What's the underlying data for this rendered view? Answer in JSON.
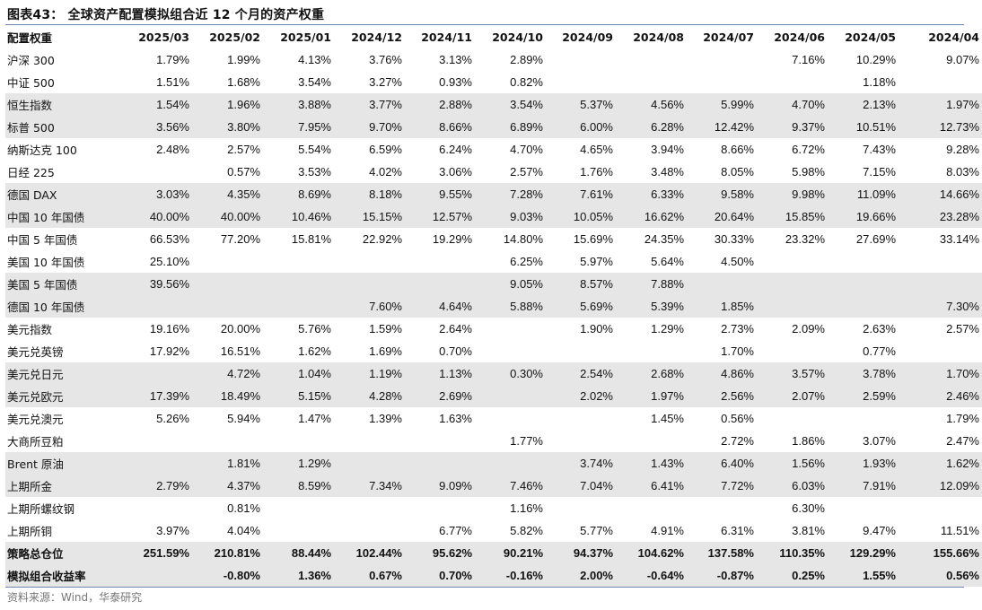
{
  "title": "图表43： 全球资产配置模拟组合近 12 个月的资产权重",
  "table": {
    "header": [
      "配置权重",
      "2025/03",
      "2025/02",
      "2025/01",
      "2024/12",
      "2024/11",
      "2024/10",
      "2024/09",
      "2024/08",
      "2024/07",
      "2024/06",
      "2024/05",
      "2024/04"
    ],
    "rows": [
      {
        "cells": [
          "沪深 300",
          "1.79%",
          "1.99%",
          "4.13%",
          "3.76%",
          "3.13%",
          "2.89%",
          "",
          "",
          "",
          "7.16%",
          "10.29%",
          "9.07%"
        ]
      },
      {
        "cells": [
          "中证 500",
          "1.51%",
          "1.68%",
          "3.54%",
          "3.27%",
          "0.93%",
          "0.82%",
          "",
          "",
          "",
          "",
          "1.18%",
          ""
        ]
      },
      {
        "cells": [
          "恒生指数",
          "1.54%",
          "1.96%",
          "3.88%",
          "3.77%",
          "2.88%",
          "3.54%",
          "5.37%",
          "4.56%",
          "5.99%",
          "4.70%",
          "2.13%",
          "1.97%"
        ]
      },
      {
        "cells": [
          "标普 500",
          "3.56%",
          "3.80%",
          "7.95%",
          "9.70%",
          "8.66%",
          "6.89%",
          "6.00%",
          "6.28%",
          "12.42%",
          "9.37%",
          "10.51%",
          "12.73%"
        ]
      },
      {
        "cells": [
          "纳斯达克 100",
          "2.48%",
          "2.57%",
          "5.54%",
          "6.59%",
          "6.24%",
          "4.70%",
          "4.65%",
          "3.94%",
          "8.66%",
          "6.72%",
          "7.43%",
          "9.28%"
        ]
      },
      {
        "cells": [
          "日经 225",
          "",
          "0.57%",
          "3.53%",
          "4.02%",
          "3.06%",
          "2.57%",
          "1.76%",
          "3.48%",
          "8.05%",
          "5.98%",
          "7.15%",
          "8.03%"
        ]
      },
      {
        "cells": [
          "德国 DAX",
          "3.03%",
          "4.35%",
          "8.69%",
          "8.18%",
          "9.55%",
          "7.28%",
          "7.61%",
          "6.33%",
          "9.58%",
          "9.98%",
          "11.09%",
          "14.66%"
        ]
      },
      {
        "cells": [
          "中国 10 年国债",
          "40.00%",
          "40.00%",
          "10.46%",
          "15.15%",
          "12.57%",
          "9.03%",
          "10.05%",
          "16.62%",
          "20.64%",
          "15.85%",
          "19.66%",
          "23.28%"
        ]
      },
      {
        "cells": [
          "中国 5 年国债",
          "66.53%",
          "77.20%",
          "15.81%",
          "22.92%",
          "19.29%",
          "14.80%",
          "15.69%",
          "24.35%",
          "30.33%",
          "23.32%",
          "27.69%",
          "33.14%"
        ]
      },
      {
        "cells": [
          "美国 10 年国债",
          "25.10%",
          "",
          "",
          "",
          "",
          "6.25%",
          "5.97%",
          "5.64%",
          "4.50%",
          "",
          "",
          ""
        ]
      },
      {
        "cells": [
          "美国 5 年国债",
          "39.56%",
          "",
          "",
          "",
          "",
          "9.05%",
          "8.57%",
          "7.88%",
          "",
          "",
          "",
          ""
        ]
      },
      {
        "cells": [
          "德国 10 年国债",
          "",
          "",
          "",
          "7.60%",
          "4.64%",
          "5.88%",
          "5.69%",
          "5.39%",
          "1.85%",
          "",
          "",
          "7.30%"
        ]
      },
      {
        "cells": [
          "美元指数",
          "19.16%",
          "20.00%",
          "5.76%",
          "1.59%",
          "2.64%",
          "",
          "1.90%",
          "1.29%",
          "2.73%",
          "2.09%",
          "2.63%",
          "2.57%"
        ]
      },
      {
        "cells": [
          "美元兑英镑",
          "17.92%",
          "16.51%",
          "1.62%",
          "1.69%",
          "0.70%",
          "",
          "",
          "",
          "1.70%",
          "",
          "0.77%",
          ""
        ]
      },
      {
        "cells": [
          "美元兑日元",
          "",
          "4.72%",
          "1.04%",
          "1.19%",
          "1.13%",
          "0.30%",
          "2.54%",
          "2.68%",
          "4.86%",
          "3.57%",
          "3.78%",
          "1.70%"
        ]
      },
      {
        "cells": [
          "美元兑欧元",
          "17.39%",
          "18.49%",
          "5.15%",
          "4.28%",
          "2.69%",
          "",
          "2.02%",
          "1.97%",
          "2.56%",
          "2.07%",
          "2.59%",
          "2.46%"
        ]
      },
      {
        "cells": [
          "美元兑澳元",
          "5.26%",
          "5.94%",
          "1.47%",
          "1.39%",
          "1.63%",
          "",
          "",
          "1.45%",
          "0.56%",
          "",
          "",
          "1.79%"
        ]
      },
      {
        "cells": [
          "大商所豆粕",
          "",
          "",
          "",
          "",
          "",
          "1.77%",
          "",
          "",
          "2.72%",
          "1.86%",
          "3.07%",
          "2.47%"
        ]
      },
      {
        "cells": [
          "Brent 原油",
          "",
          "1.81%",
          "1.29%",
          "",
          "",
          "",
          "3.74%",
          "1.43%",
          "6.40%",
          "1.56%",
          "1.93%",
          "1.62%"
        ]
      },
      {
        "cells": [
          "上期所金",
          "2.79%",
          "4.37%",
          "8.59%",
          "7.34%",
          "9.09%",
          "7.46%",
          "7.04%",
          "6.41%",
          "7.72%",
          "6.03%",
          "7.91%",
          "12.09%"
        ]
      },
      {
        "cells": [
          "上期所螺纹钢",
          "",
          "0.81%",
          "",
          "",
          "",
          "1.16%",
          "",
          "",
          "",
          "6.30%",
          "",
          ""
        ]
      },
      {
        "cells": [
          "上期所铜",
          "3.97%",
          "4.04%",
          "",
          "",
          "6.77%",
          "5.82%",
          "5.77%",
          "4.91%",
          "6.31%",
          "3.81%",
          "9.47%",
          "11.51%"
        ]
      },
      {
        "cells": [
          "策略总仓位",
          "251.59%",
          "210.81%",
          "88.44%",
          "102.44%",
          "95.62%",
          "90.21%",
          "94.37%",
          "104.62%",
          "137.58%",
          "110.35%",
          "129.29%",
          "155.66%"
        ],
        "bold": true
      },
      {
        "cells": [
          "模拟组合收益率",
          "",
          "-0.80%",
          "1.36%",
          "0.67%",
          "0.70%",
          "-0.16%",
          "2.00%",
          "-0.64%",
          "-0.87%",
          "0.25%",
          "1.55%",
          "0.56%"
        ],
        "bold": true
      }
    ]
  },
  "source": "资料来源：Wind，华泰研究"
}
